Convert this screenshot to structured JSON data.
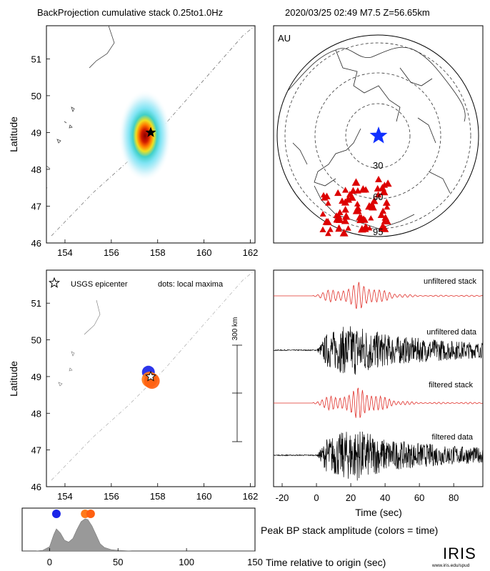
{
  "header": {
    "left": "BackProjection cumulative stack 0.25to1.0Hz",
    "right": "2020/03/25 02:49  M7.5  Z=56.65km"
  },
  "colors": {
    "frame": "#000000",
    "coast": "#444444",
    "stack_trace": "#e0302a",
    "data_trace": "#000000",
    "station": "#dd0000",
    "epicenter_star": "#1030ff",
    "dot_early": "#1a24e8",
    "dot_late": "#ff7a1a",
    "hist_fill": "#999999"
  },
  "map1": {
    "ylabel": "Latitude",
    "xticks": [
      "154",
      "156",
      "158",
      "160",
      "162"
    ],
    "yticks": [
      "51",
      "50",
      "49",
      "48",
      "47",
      "46"
    ],
    "epicenter": {
      "lon": 157.7,
      "lat": 49.0
    }
  },
  "globe": {
    "label": "AU",
    "rings": [
      "30",
      "60",
      "95"
    ]
  },
  "map2": {
    "ylabel": "Latitude",
    "xticks": [
      "154",
      "156",
      "158",
      "160",
      "162"
    ],
    "yticks": [
      "51",
      "50",
      "49",
      "48",
      "47",
      "46"
    ],
    "legend_star": "USGS epicenter",
    "legend_dots": "dots: local maxima",
    "scale_label": "300 km"
  },
  "traces": {
    "labels": [
      "unfiltered stack",
      "unfiltered data",
      "filtered stack",
      "filtered data"
    ],
    "xticks": [
      "-20",
      "0",
      "20",
      "40",
      "60",
      "80"
    ],
    "xlabel": "Time (sec)"
  },
  "hist": {
    "xticks": [
      "0",
      "50",
      "100",
      "150"
    ],
    "title": "Peak BP stack amplitude (colors = time)",
    "xlabel": "Time relative to origin (sec)"
  },
  "logo": {
    "text": "IRIS",
    "sub": "www.iris.edu/spud"
  },
  "chart_data": [
    {
      "type": "heatmap",
      "title": "BackProjection cumulative stack 0.25to1.0Hz",
      "xlabel": "",
      "ylabel": "Latitude",
      "xlim": [
        153.2,
        162.2
      ],
      "ylim": [
        46,
        51.9
      ],
      "peak": {
        "lon": 157.7,
        "lat": 49.0
      }
    },
    {
      "type": "scatter",
      "xlabel": "",
      "ylabel": "Latitude",
      "xlim": [
        153.2,
        162.2
      ],
      "ylim": [
        46,
        51.9
      ],
      "series": [
        {
          "name": "USGS epicenter",
          "points": [
            {
              "lon": 157.7,
              "lat": 49.0
            }
          ]
        },
        {
          "name": "dots: local maxima",
          "points": [
            {
              "lon": 157.6,
              "lat": 49.12,
              "t": 5
            },
            {
              "lon": 157.65,
              "lat": 48.92,
              "t": 26
            },
            {
              "lon": 157.75,
              "lat": 48.88,
              "t": 30
            }
          ]
        }
      ]
    },
    {
      "type": "line",
      "xlabel": "Time (sec)",
      "xlim": [
        -25,
        97
      ],
      "series": [
        {
          "name": "unfiltered stack"
        },
        {
          "name": "unfiltered data"
        },
        {
          "name": "filtered stack"
        },
        {
          "name": "filtered data"
        }
      ]
    },
    {
      "type": "area",
      "title": "Peak BP stack amplitude (colors = time)",
      "xlabel": "Time relative to origin (sec)",
      "xlim": [
        -20,
        150
      ],
      "x": [
        -20,
        -10,
        -5,
        0,
        3,
        5,
        8,
        11,
        14,
        17,
        20,
        23,
        26,
        28,
        31,
        34,
        37,
        40,
        45,
        50,
        60,
        80,
        150
      ],
      "y": [
        0,
        0,
        0.02,
        0.12,
        0.45,
        0.62,
        0.5,
        0.3,
        0.25,
        0.35,
        0.6,
        0.82,
        0.9,
        0.88,
        0.7,
        0.45,
        0.2,
        0.1,
        0.04,
        0.02,
        0,
        0,
        0
      ],
      "peaks": [
        {
          "t": 5
        },
        {
          "t": 26
        },
        {
          "t": 30
        }
      ]
    }
  ]
}
